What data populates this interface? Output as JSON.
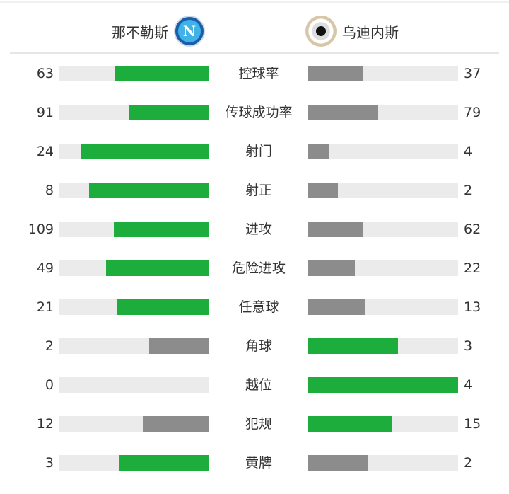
{
  "header": {
    "home_team": "那不勒斯",
    "away_team": "乌迪内斯",
    "home_logo": "napoli-crest-icon",
    "away_logo": "udinese-crest-icon"
  },
  "colors": {
    "leader": "#1cad3d",
    "trailer": "#8c8c8c",
    "track": "#ebebeb"
  },
  "stats": [
    {
      "label": "控球率",
      "home": 63,
      "away": 37
    },
    {
      "label": "传球成功率",
      "home": 91,
      "away": 79
    },
    {
      "label": "射门",
      "home": 24,
      "away": 4
    },
    {
      "label": "射正",
      "home": 8,
      "away": 2
    },
    {
      "label": "进攻",
      "home": 109,
      "away": 62
    },
    {
      "label": "危险进攻",
      "home": 49,
      "away": 22
    },
    {
      "label": "任意球",
      "home": 21,
      "away": 13
    },
    {
      "label": "角球",
      "home": 2,
      "away": 3
    },
    {
      "label": "越位",
      "home": 0,
      "away": 4
    },
    {
      "label": "犯规",
      "home": 12,
      "away": 15
    },
    {
      "label": "黄牌",
      "home": 3,
      "away": 2
    }
  ]
}
